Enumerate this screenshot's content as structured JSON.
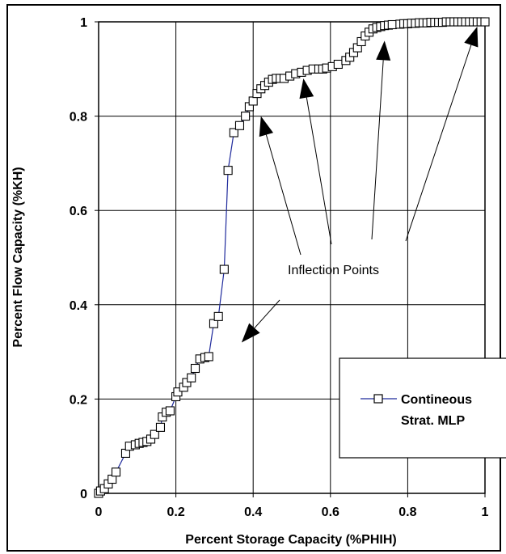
{
  "chart_data": {
    "type": "line",
    "title": "",
    "xlabel": "Percent Storage Capacity (%PHIH)",
    "ylabel": "Percent Flow Capacity (%KH)",
    "xlim": [
      0,
      1
    ],
    "ylim": [
      0,
      1
    ],
    "x_ticks": [
      "0",
      "0.2",
      "0.4",
      "0.6",
      "0.8",
      "1"
    ],
    "y_ticks": [
      "0",
      "0.2",
      "0.4",
      "0.6",
      "0.8",
      "1"
    ],
    "grid": true,
    "legend_position": "right",
    "series": [
      {
        "name": "Contineous Strat. MLP",
        "line_color": "#1f2a9c",
        "marker": "open-square",
        "x": [
          0.0,
          0.005,
          0.015,
          0.025,
          0.035,
          0.045,
          0.07,
          0.08,
          0.095,
          0.105,
          0.115,
          0.125,
          0.135,
          0.145,
          0.16,
          0.165,
          0.175,
          0.185,
          0.2,
          0.205,
          0.22,
          0.228,
          0.24,
          0.25,
          0.262,
          0.275,
          0.285,
          0.298,
          0.31,
          0.325,
          0.335,
          0.35,
          0.365,
          0.38,
          0.39,
          0.4,
          0.41,
          0.42,
          0.43,
          0.44,
          0.45,
          0.46,
          0.47,
          0.48,
          0.495,
          0.51,
          0.525,
          0.54,
          0.555,
          0.57,
          0.58,
          0.59,
          0.605,
          0.62,
          0.64,
          0.65,
          0.66,
          0.67,
          0.68,
          0.69,
          0.7,
          0.71,
          0.72,
          0.73,
          0.74,
          0.75,
          0.76,
          0.78,
          0.79,
          0.8,
          0.81,
          0.82,
          0.83,
          0.84,
          0.85,
          0.86,
          0.87,
          0.88,
          0.89,
          0.9,
          0.91,
          0.92,
          0.93,
          0.94,
          0.95,
          0.96,
          0.97,
          0.98,
          0.99,
          1.0
        ],
        "y": [
          0.0,
          0.005,
          0.01,
          0.02,
          0.03,
          0.045,
          0.085,
          0.1,
          0.103,
          0.106,
          0.108,
          0.11,
          0.115,
          0.125,
          0.14,
          0.162,
          0.172,
          0.175,
          0.205,
          0.215,
          0.225,
          0.235,
          0.245,
          0.265,
          0.285,
          0.288,
          0.29,
          0.36,
          0.375,
          0.475,
          0.685,
          0.765,
          0.78,
          0.8,
          0.82,
          0.832,
          0.848,
          0.858,
          0.865,
          0.872,
          0.878,
          0.88,
          0.88,
          0.88,
          0.885,
          0.89,
          0.893,
          0.897,
          0.9,
          0.9,
          0.9,
          0.902,
          0.905,
          0.91,
          0.918,
          0.925,
          0.935,
          0.945,
          0.958,
          0.97,
          0.978,
          0.985,
          0.988,
          0.99,
          0.992,
          0.993,
          0.994,
          0.995,
          0.996,
          0.996,
          0.997,
          0.997,
          0.998,
          0.998,
          0.998,
          0.999,
          0.999,
          0.999,
          0.999,
          1.0,
          1.0,
          1.0,
          1.0,
          1.0,
          1.0,
          1.0,
          1.0,
          1.0,
          1.0,
          1.0
        ]
      }
    ],
    "annotations": [
      {
        "text": "Inflection Points",
        "arrow_targets": [
          {
            "x": 0.42,
            "y": 0.8
          },
          {
            "x": 0.53,
            "y": 0.88
          },
          {
            "x": 0.74,
            "y": 0.96
          },
          {
            "x": 0.98,
            "y": 0.99
          },
          {
            "x": 0.37,
            "y": 0.32
          }
        ]
      }
    ],
    "legend": {
      "lines": [
        "Contineous",
        "Strat. MLP"
      ]
    }
  }
}
